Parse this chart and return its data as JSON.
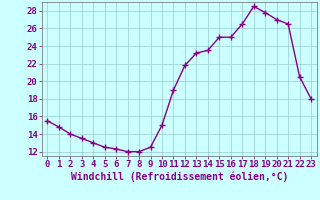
{
  "x": [
    0,
    1,
    2,
    3,
    4,
    5,
    6,
    7,
    8,
    9,
    10,
    11,
    12,
    13,
    14,
    15,
    16,
    17,
    18,
    19,
    20,
    21,
    22,
    23
  ],
  "y": [
    15.5,
    14.8,
    14.0,
    13.5,
    13.0,
    12.5,
    12.3,
    12.0,
    12.0,
    12.5,
    15.0,
    19.0,
    21.8,
    23.2,
    23.5,
    25.0,
    25.0,
    26.5,
    28.5,
    27.8,
    27.0,
    26.5,
    20.5,
    18.0
  ],
  "line_color": "#880088",
  "marker": "+",
  "marker_color": "#880088",
  "marker_size": 4,
  "marker_linewidth": 1.0,
  "line_width": 1.0,
  "background_color": "#ccffff",
  "grid_color": "#99cccc",
  "xlabel": "Windchill (Refroidissement éolien,°C)",
  "xlabel_fontsize": 7,
  "tick_fontsize": 6.5,
  "xlim": [
    -0.5,
    23.5
  ],
  "ylim": [
    11.5,
    29.0
  ],
  "yticks": [
    12,
    14,
    16,
    18,
    20,
    22,
    24,
    26,
    28
  ],
  "xticks": [
    0,
    1,
    2,
    3,
    4,
    5,
    6,
    7,
    8,
    9,
    10,
    11,
    12,
    13,
    14,
    15,
    16,
    17,
    18,
    19,
    20,
    21,
    22,
    23
  ]
}
